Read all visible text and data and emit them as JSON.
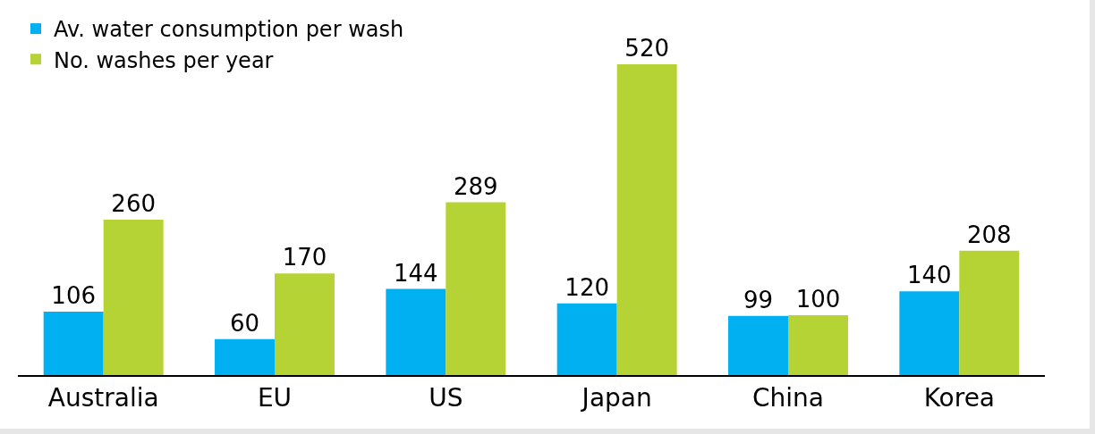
{
  "chart_data": {
    "type": "bar",
    "categories": [
      "Australia",
      "EU",
      "US",
      "Japan",
      "China",
      "Korea"
    ],
    "series": [
      {
        "name": "Av. water consumption per wash",
        "color": "#00b0f0",
        "values": [
          106,
          60,
          144,
          120,
          99,
          140
        ]
      },
      {
        "name": "No. washes per year",
        "color": "#b5d334",
        "values": [
          260,
          170,
          289,
          520,
          100,
          208
        ]
      }
    ],
    "data_labels": true,
    "legend": "top left",
    "grid": false
  }
}
